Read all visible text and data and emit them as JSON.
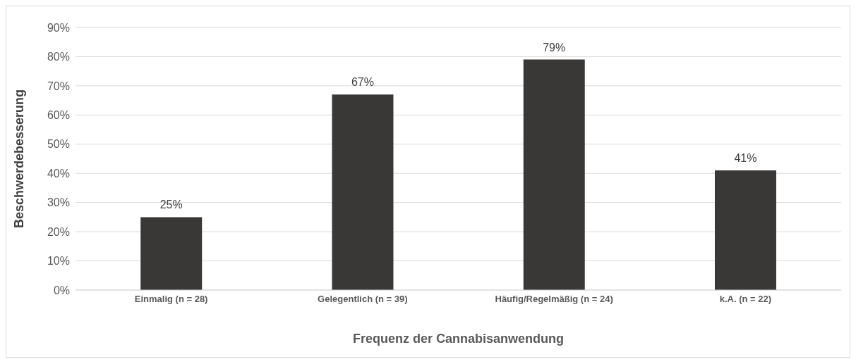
{
  "chart_data": {
    "type": "bar",
    "xlabel": "Frequenz der Cannabisanwendung",
    "ylabel": "Beschwerdebesserung",
    "categories": [
      "Einmalig (n = 28)",
      "Gelegentlich (n = 39)",
      "Häufig/Regelmäßig (n = 24)",
      "k.A. (n = 22)"
    ],
    "values": [
      25,
      67,
      79,
      41
    ],
    "value_labels": [
      "25%",
      "67%",
      "79%",
      "41%"
    ],
    "color": "#3a3837",
    "ylim": [
      0,
      90
    ],
    "yticks": [
      {
        "value": 0,
        "label": "0%"
      },
      {
        "value": 10,
        "label": "10%"
      },
      {
        "value": 20,
        "label": "20%"
      },
      {
        "value": 30,
        "label": "30%"
      },
      {
        "value": 40,
        "label": "40%"
      },
      {
        "value": 50,
        "label": "50%"
      },
      {
        "value": 60,
        "label": "60%"
      },
      {
        "value": 70,
        "label": "70%"
      },
      {
        "value": 80,
        "label": "80%"
      },
      {
        "value": 90,
        "label": "90%"
      }
    ],
    "grid": "y",
    "legend": false
  }
}
